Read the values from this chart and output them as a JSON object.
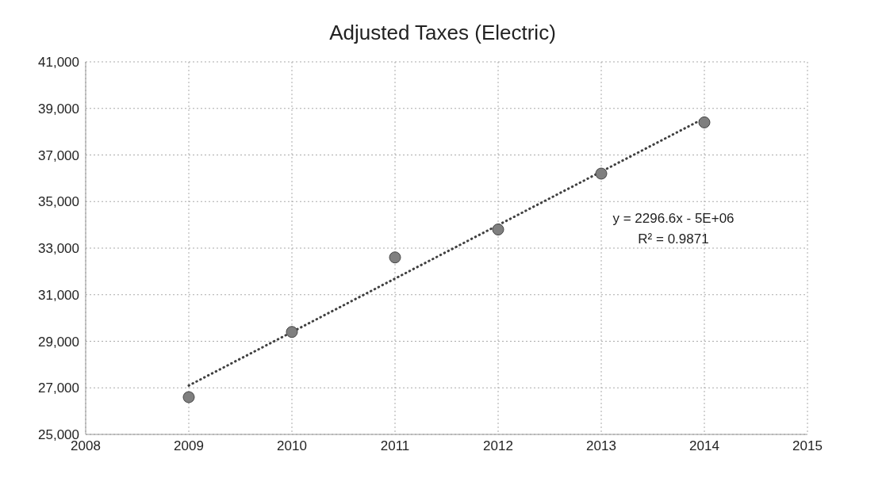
{
  "chart_data": {
    "type": "scatter",
    "title": "Adjusted Taxes (Electric)",
    "x": [
      2009,
      2010,
      2011,
      2012,
      2013,
      2014
    ],
    "series": [
      {
        "color": "#7f7f7f",
        "values": [
          26600,
          29400,
          32600,
          33800,
          36200,
          38400
        ],
        "marker": "circle"
      },
      {
        "type": "line",
        "color": "#404040",
        "x": [
          2009,
          2014
        ],
        "values": [
          27100,
          38580
        ],
        "line_style": "dotted",
        "marker": "none"
      }
    ],
    "annotations": [
      "y = 2296.6x - 5E+06",
      "R² = 0.9871"
    ],
    "xlim": [
      2008,
      2015
    ],
    "xticks": [
      2008,
      2009,
      2010,
      2011,
      2012,
      2013,
      2014,
      2015
    ],
    "ylim": [
      25000,
      41000
    ],
    "yticks": [
      {
        "value": 25000,
        "label": "25,000"
      },
      {
        "value": 27000,
        "label": "27,000"
      },
      {
        "value": 29000,
        "label": "29,000"
      },
      {
        "value": 31000,
        "label": "31,000"
      },
      {
        "value": 33000,
        "label": "33,000"
      },
      {
        "value": 35000,
        "label": "35,000"
      },
      {
        "value": 37000,
        "label": "37,000"
      },
      {
        "value": 39000,
        "label": "39,000"
      },
      {
        "value": 41000,
        "label": "41,000"
      }
    ],
    "grid": true,
    "legend": false
  }
}
